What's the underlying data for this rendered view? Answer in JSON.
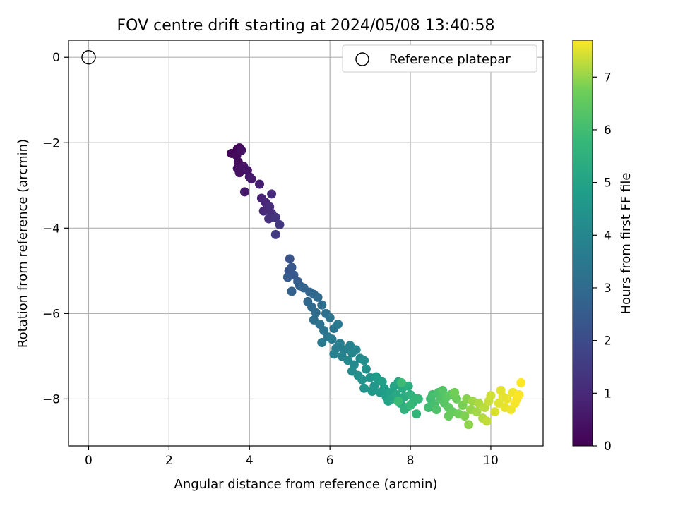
{
  "chart_data": {
    "type": "scatter",
    "title": "FOV centre drift starting at 2024/05/08 13:40:58",
    "xlabel": "Angular distance from reference (arcmin)",
    "ylabel": "Rotation from reference (arcmin)",
    "xlim": [
      -0.5,
      11.3
    ],
    "ylim": [
      -9.1,
      0.4
    ],
    "xticks": [
      0,
      2,
      4,
      6,
      8,
      10
    ],
    "yticks": [
      0,
      -2,
      -4,
      -6,
      -8
    ],
    "grid": true,
    "legend": {
      "position": "upper right",
      "entries": [
        "Reference platepar"
      ]
    },
    "reference_point": {
      "x": 0,
      "y": 0
    },
    "colorbar": {
      "label": "Hours from first FF file",
      "range": [
        0,
        7.7
      ],
      "ticks": [
        0,
        1,
        2,
        3,
        4,
        5,
        6,
        7
      ],
      "colormap": "viridis"
    },
    "series": [
      {
        "points": [
          {
            "x": 3.7,
            "y": -2.15,
            "c": 0.0
          },
          {
            "x": 3.65,
            "y": -2.25,
            "c": 0.05
          },
          {
            "x": 3.55,
            "y": -2.25,
            "c": 0.1
          },
          {
            "x": 3.75,
            "y": -2.12,
            "c": 0.15
          },
          {
            "x": 3.68,
            "y": -2.3,
            "c": 0.2
          },
          {
            "x": 3.72,
            "y": -2.45,
            "c": 0.25
          },
          {
            "x": 3.7,
            "y": -2.6,
            "c": 0.3
          },
          {
            "x": 3.8,
            "y": -2.18,
            "c": 0.35
          },
          {
            "x": 3.75,
            "y": -2.7,
            "c": 0.4
          },
          {
            "x": 3.85,
            "y": -2.55,
            "c": 0.45
          },
          {
            "x": 3.95,
            "y": -2.65,
            "c": 0.5
          },
          {
            "x": 4.0,
            "y": -2.8,
            "c": 0.55
          },
          {
            "x": 3.88,
            "y": -3.15,
            "c": 0.6
          },
          {
            "x": 4.05,
            "y": -2.85,
            "c": 0.65
          },
          {
            "x": 4.25,
            "y": -2.97,
            "c": 0.75
          },
          {
            "x": 4.3,
            "y": -3.3,
            "c": 0.85
          },
          {
            "x": 4.4,
            "y": -3.4,
            "c": 0.95
          },
          {
            "x": 4.35,
            "y": -3.6,
            "c": 1.0
          },
          {
            "x": 4.55,
            "y": -3.2,
            "c": 1.05
          },
          {
            "x": 4.5,
            "y": -3.5,
            "c": 1.1
          },
          {
            "x": 4.55,
            "y": -3.65,
            "c": 1.15
          },
          {
            "x": 4.48,
            "y": -3.78,
            "c": 1.2
          },
          {
            "x": 4.65,
            "y": -3.75,
            "c": 1.3
          },
          {
            "x": 4.75,
            "y": -3.92,
            "c": 1.4
          },
          {
            "x": 4.65,
            "y": -4.15,
            "c": 1.5
          },
          {
            "x": 5.0,
            "y": -4.72,
            "c": 2.2
          },
          {
            "x": 4.98,
            "y": -5.0,
            "c": 2.3
          },
          {
            "x": 5.05,
            "y": -4.92,
            "c": 2.35
          },
          {
            "x": 5.1,
            "y": -5.1,
            "c": 2.4
          },
          {
            "x": 4.95,
            "y": -5.15,
            "c": 2.45
          },
          {
            "x": 5.2,
            "y": -5.25,
            "c": 2.55
          },
          {
            "x": 5.25,
            "y": -5.35,
            "c": 2.65
          },
          {
            "x": 5.05,
            "y": -5.48,
            "c": 2.7
          },
          {
            "x": 5.35,
            "y": -5.4,
            "c": 2.75
          },
          {
            "x": 5.5,
            "y": -5.5,
            "c": 2.8
          },
          {
            "x": 5.45,
            "y": -5.72,
            "c": 2.85
          },
          {
            "x": 5.6,
            "y": -5.55,
            "c": 2.9
          },
          {
            "x": 5.55,
            "y": -5.85,
            "c": 2.95
          },
          {
            "x": 5.7,
            "y": -5.62,
            "c": 3.0
          },
          {
            "x": 5.65,
            "y": -5.98,
            "c": 3.05
          },
          {
            "x": 5.8,
            "y": -5.8,
            "c": 3.1
          },
          {
            "x": 5.6,
            "y": -6.15,
            "c": 3.15
          },
          {
            "x": 5.9,
            "y": -6.0,
            "c": 3.2
          },
          {
            "x": 5.75,
            "y": -6.25,
            "c": 3.25
          },
          {
            "x": 6.0,
            "y": -6.1,
            "c": 3.3
          },
          {
            "x": 5.85,
            "y": -6.4,
            "c": 3.35
          },
          {
            "x": 6.1,
            "y": -6.35,
            "c": 3.4
          },
          {
            "x": 5.95,
            "y": -6.55,
            "c": 3.45
          },
          {
            "x": 6.2,
            "y": -6.25,
            "c": 3.5
          },
          {
            "x": 5.8,
            "y": -6.68,
            "c": 3.55
          },
          {
            "x": 6.05,
            "y": -6.6,
            "c": 3.6
          },
          {
            "x": 6.25,
            "y": -6.7,
            "c": 3.65
          },
          {
            "x": 6.15,
            "y": -6.82,
            "c": 3.7
          },
          {
            "x": 6.35,
            "y": -6.85,
            "c": 3.75
          },
          {
            "x": 6.1,
            "y": -6.95,
            "c": 3.8
          },
          {
            "x": 6.5,
            "y": -6.75,
            "c": 3.85
          },
          {
            "x": 6.3,
            "y": -7.0,
            "c": 3.9
          },
          {
            "x": 6.55,
            "y": -6.92,
            "c": 3.95
          },
          {
            "x": 6.65,
            "y": -6.85,
            "c": 4.0
          },
          {
            "x": 6.45,
            "y": -7.1,
            "c": 4.05
          },
          {
            "x": 6.6,
            "y": -7.2,
            "c": 4.1
          },
          {
            "x": 6.75,
            "y": -7.05,
            "c": 4.15
          },
          {
            "x": 6.55,
            "y": -7.35,
            "c": 4.2
          },
          {
            "x": 6.85,
            "y": -7.1,
            "c": 4.25
          },
          {
            "x": 6.7,
            "y": -7.45,
            "c": 4.3
          },
          {
            "x": 6.9,
            "y": -7.3,
            "c": 4.35
          },
          {
            "x": 6.8,
            "y": -7.55,
            "c": 4.4
          },
          {
            "x": 7.0,
            "y": -7.5,
            "c": 4.45
          },
          {
            "x": 6.85,
            "y": -7.75,
            "c": 4.5
          },
          {
            "x": 7.1,
            "y": -7.7,
            "c": 4.55
          },
          {
            "x": 7.2,
            "y": -7.55,
            "c": 4.6
          },
          {
            "x": 7.05,
            "y": -7.82,
            "c": 4.65
          },
          {
            "x": 7.25,
            "y": -7.85,
            "c": 4.7
          },
          {
            "x": 7.15,
            "y": -7.48,
            "c": 4.75
          },
          {
            "x": 7.35,
            "y": -7.75,
            "c": 4.8
          },
          {
            "x": 7.4,
            "y": -7.95,
            "c": 4.85
          },
          {
            "x": 7.3,
            "y": -7.6,
            "c": 4.9
          },
          {
            "x": 7.5,
            "y": -7.85,
            "c": 4.95
          },
          {
            "x": 7.45,
            "y": -8.05,
            "c": 5.0
          },
          {
            "x": 7.6,
            "y": -7.7,
            "c": 5.05
          },
          {
            "x": 7.55,
            "y": -8.0,
            "c": 5.1
          },
          {
            "x": 7.7,
            "y": -7.6,
            "c": 5.15
          },
          {
            "x": 7.65,
            "y": -7.9,
            "c": 5.2
          },
          {
            "x": 7.8,
            "y": -7.75,
            "c": 5.25
          },
          {
            "x": 7.75,
            "y": -8.1,
            "c": 5.3
          },
          {
            "x": 7.85,
            "y": -7.95,
            "c": 5.35
          },
          {
            "x": 7.95,
            "y": -7.7,
            "c": 5.4
          },
          {
            "x": 7.9,
            "y": -8.2,
            "c": 5.45
          },
          {
            "x": 8.0,
            "y": -7.9,
            "c": 5.5
          },
          {
            "x": 7.85,
            "y": -8.25,
            "c": 5.55
          },
          {
            "x": 8.05,
            "y": -8.1,
            "c": 5.6
          },
          {
            "x": 8.1,
            "y": -7.98,
            "c": 5.65
          },
          {
            "x": 8.15,
            "y": -8.35,
            "c": 5.7
          },
          {
            "x": 8.2,
            "y": -8.0,
            "c": 5.75
          },
          {
            "x": 8.0,
            "y": -8.15,
            "c": 5.8
          },
          {
            "x": 7.7,
            "y": -8.05,
            "c": 5.85
          },
          {
            "x": 7.78,
            "y": -7.62,
            "c": 5.9
          },
          {
            "x": 8.5,
            "y": -8.0,
            "c": 5.95
          },
          {
            "x": 8.45,
            "y": -8.2,
            "c": 6.0
          },
          {
            "x": 8.55,
            "y": -7.9,
            "c": 6.05
          },
          {
            "x": 8.6,
            "y": -8.12,
            "c": 6.1
          },
          {
            "x": 8.7,
            "y": -7.85,
            "c": 6.15
          },
          {
            "x": 8.65,
            "y": -8.25,
            "c": 6.2
          },
          {
            "x": 8.75,
            "y": -8.0,
            "c": 6.25
          },
          {
            "x": 8.8,
            "y": -7.8,
            "c": 6.3
          },
          {
            "x": 8.85,
            "y": -8.1,
            "c": 6.35
          },
          {
            "x": 8.9,
            "y": -7.95,
            "c": 6.4
          },
          {
            "x": 8.95,
            "y": -8.2,
            "c": 6.45
          },
          {
            "x": 9.0,
            "y": -7.9,
            "c": 6.5
          },
          {
            "x": 9.05,
            "y": -8.3,
            "c": 6.55
          },
          {
            "x": 8.95,
            "y": -8.4,
            "c": 6.6
          },
          {
            "x": 9.15,
            "y": -8.0,
            "c": 6.65
          },
          {
            "x": 9.2,
            "y": -8.35,
            "c": 6.7
          },
          {
            "x": 9.1,
            "y": -7.85,
            "c": 6.75
          },
          {
            "x": 9.3,
            "y": -8.15,
            "c": 6.8
          },
          {
            "x": 9.35,
            "y": -8.4,
            "c": 6.85
          },
          {
            "x": 9.4,
            "y": -8.0,
            "c": 6.9
          },
          {
            "x": 9.45,
            "y": -8.6,
            "c": 6.95
          },
          {
            "x": 9.5,
            "y": -8.25,
            "c": 7.0
          },
          {
            "x": 9.55,
            "y": -8.05,
            "c": 7.05
          },
          {
            "x": 9.65,
            "y": -8.3,
            "c": 7.1
          },
          {
            "x": 9.7,
            "y": -8.1,
            "c": 7.15
          },
          {
            "x": 9.8,
            "y": -8.45,
            "c": 7.2
          },
          {
            "x": 9.85,
            "y": -8.2,
            "c": 7.25
          },
          {
            "x": 9.9,
            "y": -8.52,
            "c": 7.3
          },
          {
            "x": 9.95,
            "y": -8.05,
            "c": 7.35
          },
          {
            "x": 10.0,
            "y": -7.92,
            "c": 7.4
          },
          {
            "x": 10.1,
            "y": -8.3,
            "c": 7.45
          },
          {
            "x": 10.2,
            "y": -8.1,
            "c": 7.5
          },
          {
            "x": 10.25,
            "y": -7.8,
            "c": 7.52
          },
          {
            "x": 10.35,
            "y": -8.2,
            "c": 7.55
          },
          {
            "x": 10.4,
            "y": -8.0,
            "c": 7.58
          },
          {
            "x": 10.5,
            "y": -8.25,
            "c": 7.6
          },
          {
            "x": 10.55,
            "y": -7.85,
            "c": 7.62
          },
          {
            "x": 10.65,
            "y": -8.0,
            "c": 7.65
          },
          {
            "x": 10.7,
            "y": -7.9,
            "c": 7.68
          },
          {
            "x": 10.75,
            "y": -7.62,
            "c": 7.7
          },
          {
            "x": 10.6,
            "y": -8.1,
            "c": 7.66
          },
          {
            "x": 10.3,
            "y": -7.95,
            "c": 7.54
          }
        ]
      }
    ]
  }
}
